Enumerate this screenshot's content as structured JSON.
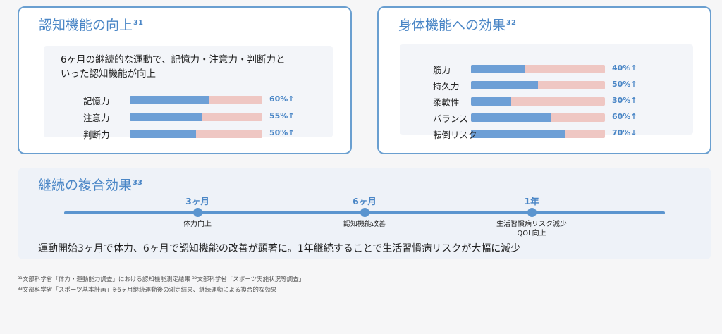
{
  "cognitive": {
    "title": "認知機能の向上",
    "ref": "31",
    "description": "6ヶ月の継続的な運動で、記憶力・注意力・判断力といった認知機能が向上",
    "bars": [
      {
        "label": "記憶力",
        "value": "60%↑",
        "fraction": 0.6
      },
      {
        "label": "注意力",
        "value": "55%↑",
        "fraction": 0.55
      },
      {
        "label": "判断力",
        "value": "50%↑",
        "fraction": 0.5
      }
    ]
  },
  "physical": {
    "title": "身体機能への効果",
    "ref": "32",
    "bars": [
      {
        "label": "筋力",
        "value": "40%↑",
        "fraction": 0.4
      },
      {
        "label": "持久力",
        "value": "50%↑",
        "fraction": 0.5
      },
      {
        "label": "柔軟性",
        "value": "30%↑",
        "fraction": 0.3
      },
      {
        "label": "バランス",
        "value": "60%↑",
        "fraction": 0.6
      },
      {
        "label": "転倒リスク",
        "value": "70%↓",
        "fraction": 0.7
      }
    ]
  },
  "continuation": {
    "title": "継続の複合効果",
    "ref": "33",
    "milestones": [
      {
        "time": "3ヶ月",
        "effect": "体力向上"
      },
      {
        "time": "6ヶ月",
        "effect": "認知機能改善"
      },
      {
        "time": "1年",
        "effect": "生活習慣病リスク減少",
        "effect2": "QOL向上"
      }
    ],
    "summary": "運動開始3ヶ月で体力、6ヶ月で認知機能の改善が顕著に。1年継続することで生活習慣病リスクが大幅に減少"
  },
  "footnotes": [
    "³¹文部科学省「体力・運動能力調査」における認知機能測定結果 ³²文部科学省「スポーツ実施状況等調査」",
    "³³文部科学省「スポーツ基本計画」※6ヶ月継続運動後の測定結果、継続運動による複合的な効果"
  ],
  "colors": {
    "accent": "#4a86c6",
    "bar_fill": "#6d9fd6",
    "bar_track": "#efc7c3",
    "border": "#6a9fd0"
  }
}
